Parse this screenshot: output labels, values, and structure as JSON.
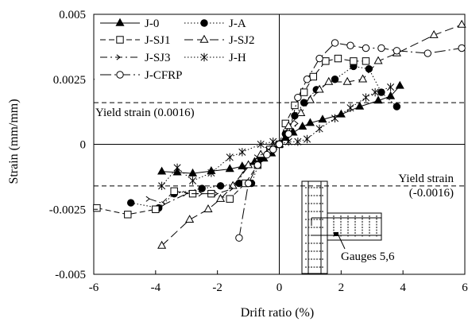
{
  "chart_data": {
    "type": "line",
    "title": "",
    "xlabel": "Drift ratio (%)",
    "ylabel": "Strain (mm/mm)",
    "xlim": [
      -6,
      6
    ],
    "ylim": [
      -0.005,
      0.005
    ],
    "x_ticks": [
      -6,
      -4,
      -2,
      0,
      2,
      4,
      6
    ],
    "x_tick_labels": [
      "-6",
      "-4",
      "-2",
      "0",
      "2",
      "4",
      "6"
    ],
    "y_ticks": [
      -0.005,
      -0.0025,
      0,
      0.0025,
      0.005
    ],
    "y_tick_labels": [
      "-0.005",
      "-0.0025",
      "0",
      "0.0025",
      "0.005"
    ],
    "grid": false,
    "legend_position": "top-left",
    "series": [
      {
        "name": "J-0",
        "marker": "triangle-filled",
        "dash": "solid",
        "points": [
          [
            -3.8,
            -0.00105
          ],
          [
            -3.3,
            -0.00108
          ],
          [
            -2.8,
            -0.00112
          ],
          [
            -2.2,
            -0.00103
          ],
          [
            -1.6,
            -0.00095
          ],
          [
            -1.2,
            -0.00085
          ],
          [
            -0.8,
            -0.00068
          ],
          [
            -0.5,
            -0.00055
          ],
          [
            -0.25,
            -0.00035
          ],
          [
            0,
            0
          ],
          [
            0.2,
            0.00025
          ],
          [
            0.45,
            0.00045
          ],
          [
            0.75,
            0.00068
          ],
          [
            1.0,
            0.00082
          ],
          [
            1.4,
            0.00095
          ],
          [
            2.0,
            0.00115
          ],
          [
            2.6,
            0.00145
          ],
          [
            3.2,
            0.00168
          ],
          [
            3.6,
            0.00185
          ],
          [
            3.9,
            0.00225
          ]
        ]
      },
      {
        "name": "J-A",
        "marker": "circle-filled",
        "dash": "dot",
        "points": [
          [
            -4.8,
            -0.00225
          ],
          [
            -3.9,
            -0.00245
          ],
          [
            -3.4,
            -0.0019
          ],
          [
            -2.5,
            -0.0017
          ],
          [
            -1.9,
            -0.0016
          ],
          [
            -1.3,
            -0.0015
          ],
          [
            -0.9,
            -0.0015
          ],
          [
            -0.6,
            -0.00055
          ],
          [
            -0.3,
            -0.0003
          ],
          [
            0,
            0
          ],
          [
            0.2,
            0.0004
          ],
          [
            0.5,
            0.0011
          ],
          [
            0.8,
            0.0016
          ],
          [
            1.2,
            0.0021
          ],
          [
            1.8,
            0.0025
          ],
          [
            2.4,
            0.003
          ],
          [
            2.9,
            0.0029
          ],
          [
            3.3,
            0.002
          ],
          [
            3.8,
            0.00145
          ]
        ]
      },
      {
        "name": "J-SJ1",
        "marker": "square-open",
        "dash": "dash",
        "points": [
          [
            -5.9,
            -0.00245
          ],
          [
            -4.9,
            -0.0027
          ],
          [
            -4.0,
            -0.0025
          ],
          [
            -3.4,
            -0.0018
          ],
          [
            -2.8,
            -0.0019
          ],
          [
            -2.2,
            -0.0019
          ],
          [
            -1.6,
            -0.0021
          ],
          [
            -1.1,
            -0.0015
          ],
          [
            -0.7,
            -0.0008
          ],
          [
            -0.3,
            -0.0002
          ],
          [
            0,
            0
          ],
          [
            0.2,
            0.0008
          ],
          [
            0.5,
            0.0015
          ],
          [
            0.8,
            0.002
          ],
          [
            1.1,
            0.0026
          ],
          [
            1.5,
            0.0032
          ],
          [
            1.9,
            0.0033
          ],
          [
            2.4,
            0.0032
          ],
          [
            2.8,
            0.0032
          ]
        ]
      },
      {
        "name": "J-SJ2",
        "marker": "triangle-open",
        "dash": "longdash",
        "points": [
          [
            -3.8,
            -0.0039
          ],
          [
            -2.9,
            -0.0029
          ],
          [
            -2.3,
            -0.0025
          ],
          [
            -1.9,
            -0.0021
          ],
          [
            -1.5,
            -0.0016
          ],
          [
            -1.0,
            -0.0008
          ],
          [
            -0.6,
            -0.0004
          ],
          [
            -0.2,
            -0.0001
          ],
          [
            0,
            0
          ],
          [
            0.3,
            0.0007
          ],
          [
            0.7,
            0.0012
          ],
          [
            1.0,
            0.0017
          ],
          [
            1.3,
            0.0021
          ],
          [
            1.6,
            0.0024
          ],
          [
            2.2,
            0.0024
          ],
          [
            2.7,
            0.0025
          ],
          [
            3.2,
            0.0032
          ],
          [
            3.8,
            0.0035
          ],
          [
            5.0,
            0.0042
          ],
          [
            5.9,
            0.0046
          ]
        ]
      },
      {
        "name": "J-SJ3",
        "marker": "chevron-open",
        "dash": "dashdot",
        "points": [
          [
            -4.2,
            -0.0021
          ],
          [
            -3.7,
            -0.0023
          ],
          [
            -3.0,
            -0.0019
          ],
          [
            -2.5,
            -0.0019
          ],
          [
            -2.0,
            -0.0019
          ],
          [
            -1.5,
            -0.0017
          ],
          [
            -1.1,
            -0.001
          ],
          [
            -0.7,
            -0.0005
          ],
          [
            -0.35,
            -0.0002
          ],
          [
            0,
            0
          ],
          [
            0.2,
            0.0003
          ],
          [
            0.6,
            0.0008
          ]
        ]
      },
      {
        "name": "J-H",
        "marker": "asterisk",
        "dash": "dot",
        "points": [
          [
            -3.8,
            -0.0016
          ],
          [
            -3.3,
            -0.0009
          ],
          [
            -2.8,
            -0.0014
          ],
          [
            -2.2,
            -0.0011
          ],
          [
            -1.6,
            -0.0005
          ],
          [
            -1.2,
            -0.0003
          ],
          [
            -0.6,
            0.0
          ],
          [
            -0.2,
            0.0001
          ],
          [
            0,
            0
          ],
          [
            0.3,
            0.0001
          ],
          [
            0.6,
            0.0001
          ],
          [
            0.9,
            0.0002
          ],
          [
            1.3,
            0.0006
          ],
          [
            1.8,
            0.001
          ],
          [
            2.3,
            0.0014
          ],
          [
            2.8,
            0.0018
          ],
          [
            3.1,
            0.002
          ],
          [
            3.6,
            0.0022
          ]
        ]
      },
      {
        "name": "J-CFRP",
        "marker": "circle-open",
        "dash": "longdashdot",
        "points": [
          [
            -1.3,
            -0.0036
          ],
          [
            -1.0,
            -0.0015
          ],
          [
            -0.7,
            -0.0008
          ],
          [
            -0.4,
            -0.0004
          ],
          [
            -0.2,
            -0.0002
          ],
          [
            0,
            0
          ],
          [
            0.3,
            0.0004
          ],
          [
            0.6,
            0.0018
          ],
          [
            0.9,
            0.0025
          ],
          [
            1.3,
            0.0033
          ],
          [
            1.8,
            0.0039
          ],
          [
            2.3,
            0.0038
          ],
          [
            2.8,
            0.0037
          ],
          [
            3.3,
            0.0037
          ],
          [
            3.8,
            0.0036
          ],
          [
            4.8,
            0.0035
          ],
          [
            5.9,
            0.0037
          ]
        ]
      }
    ],
    "reference_lines": [
      {
        "y": 0.0016,
        "label": "Yield strain (0.0016)"
      },
      {
        "y": -0.0016,
        "label_lines": [
          "Yield strain",
          "(-0.0016)"
        ]
      }
    ],
    "inset": {
      "label": "Gauges 5,6"
    }
  }
}
